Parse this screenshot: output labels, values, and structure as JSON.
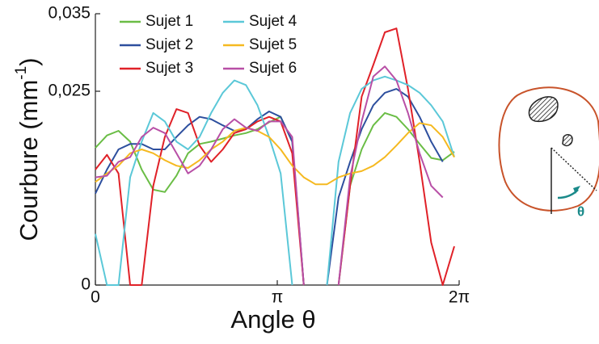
{
  "chart_data": {
    "type": "line",
    "x_label": "Angle θ",
    "y_label_parts": [
      "Courbure (mm",
      "-1",
      ")"
    ],
    "x": [
      0,
      0.2,
      0.4,
      0.6,
      0.8,
      1.0,
      1.2,
      1.4,
      1.6,
      1.8,
      2.0,
      2.2,
      2.4,
      2.6,
      2.8,
      3.0,
      3.2,
      3.4,
      3.6,
      3.8,
      4.0,
      4.2,
      4.4,
      4.6,
      4.8,
      5.0,
      5.2,
      5.4,
      5.6,
      5.8,
      6.0,
      6.2
    ],
    "series": [
      {
        "name": "Sujet 1",
        "color": "#6abd45",
        "values": [
          0.0177,
          0.0193,
          0.0199,
          0.0185,
          0.0149,
          0.0123,
          0.012,
          0.0141,
          0.017,
          0.0182,
          0.0185,
          0.0189,
          0.0193,
          0.0196,
          0.0201,
          0.021,
          0.0217,
          0.0185,
          0,
          null,
          null,
          0,
          0.0128,
          0.0175,
          0.0206,
          0.0222,
          0.0217,
          0.0201,
          0.0182,
          0.0164,
          0.0161,
          0.0172
        ]
      },
      {
        "name": "Sujet 2",
        "color": "#2d4f9e",
        "values": [
          0.0118,
          0.0149,
          0.0175,
          0.0182,
          0.0182,
          0.0175,
          0.0175,
          0.0191,
          0.0206,
          0.0217,
          0.0214,
          0.0206,
          0.0199,
          0.0201,
          0.0214,
          0.0224,
          0.0217,
          0.0185,
          0,
          null,
          0,
          0.0113,
          0.0159,
          0.0201,
          0.0232,
          0.0248,
          0.0253,
          0.0243,
          0.0217,
          0.0185,
          0.0159,
          null
        ]
      },
      {
        "name": "Sujet 3",
        "color": "#e02128",
        "values": [
          0.0149,
          0.0168,
          0.0144,
          0,
          0,
          0.0128,
          0.0191,
          0.0227,
          0.0222,
          0.018,
          0.0159,
          0.0175,
          0.0196,
          0.0201,
          0.0211,
          0.0217,
          0.0211,
          0.017,
          0,
          null,
          null,
          0,
          0.0128,
          0.0243,
          0.0284,
          0.0326,
          0.0331,
          0.0253,
          0.0159,
          0.0055,
          0,
          0.005
        ]
      },
      {
        "name": "Sujet 4",
        "color": "#5bc8d8",
        "values": [
          0.0066,
          0,
          0,
          0.0139,
          0.0185,
          0.0222,
          0.0211,
          0.0185,
          0.0175,
          0.0191,
          0.0222,
          0.0248,
          0.0264,
          0.0258,
          0.0232,
          0.0191,
          0.0144,
          0,
          null,
          null,
          0,
          0.0159,
          0.0222,
          0.0253,
          0.0264,
          0.0269,
          0.0264,
          0.0258,
          0.0248,
          0.0232,
          0.0211,
          0.0165
        ]
      },
      {
        "name": "Sujet 5",
        "color": "#f5b920",
        "values": [
          0.0133,
          0.0144,
          0.0154,
          0.017,
          0.0175,
          0.017,
          0.0161,
          0.0154,
          0.0151,
          0.0161,
          0.0175,
          0.0185,
          0.0199,
          0.0203,
          0.0199,
          0.0191,
          0.0175,
          0.0154,
          0.0139,
          0.013,
          0.013,
          0.0139,
          0.0144,
          0.0147,
          0.0154,
          0.0165,
          0.018,
          0.0196,
          0.0209,
          0.0206,
          0.0191,
          0.0165
        ]
      },
      {
        "name": "Sujet 6",
        "color": "#b84fa6",
        "values": [
          0.0139,
          0.0141,
          0.0159,
          0.0165,
          0.0191,
          0.0203,
          0.0196,
          0.017,
          0.0144,
          0.0154,
          0.0175,
          0.0201,
          0.0214,
          0.0203,
          0.0199,
          0.0211,
          0.0211,
          0.0191,
          0,
          null,
          null,
          0,
          0.0139,
          0.0211,
          0.0269,
          0.0282,
          0.0264,
          0.0222,
          0.017,
          0.0128,
          0.0113,
          null
        ]
      }
    ],
    "xlim": [
      0,
      6.2832
    ],
    "xticks": [
      0,
      {
        "value": 3.1416,
        "label": "π"
      },
      {
        "value": 6.2832,
        "label": "2π"
      }
    ],
    "ylim": [
      0,
      0.035
    ],
    "yticks": [
      0,
      {
        "value": 0.025,
        "label": "0,025"
      },
      {
        "value": 0.035,
        "label": "0,035"
      }
    ],
    "legend": "upper left"
  },
  "inset": {
    "label": "θ"
  }
}
